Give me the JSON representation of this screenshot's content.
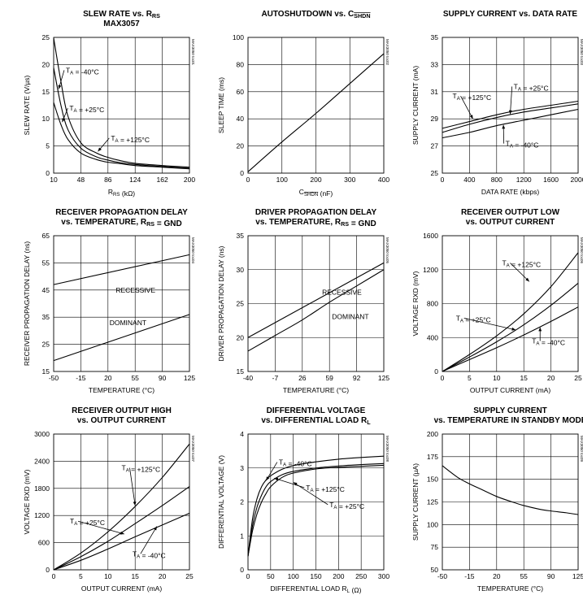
{
  "chart_data": [
    {
      "id": "p1",
      "type": "line",
      "title": [
        "SLEW RATE vs. R_RS",
        "MAX3057"
      ],
      "xlabel": "R_RS (kΩ)",
      "ylabel": "SLEW RATE (V/µs)",
      "xlim": [
        10,
        200
      ],
      "ylim": [
        0,
        25
      ],
      "xticks": [
        10,
        48,
        86,
        124,
        162,
        200
      ],
      "yticks": [
        0,
        5,
        10,
        15,
        20,
        25
      ],
      "grid": true,
      "code": "MAX3050 toc01",
      "series": [
        {
          "name": "T_A = -40°C",
          "x": [
            10,
            20,
            30,
            48,
            70,
            86,
            100,
            124,
            162,
            200
          ],
          "y": [
            24.9,
            17.0,
            10.5,
            5.6,
            3.7,
            2.9,
            2.4,
            1.8,
            1.4,
            1.1
          ]
        },
        {
          "name": "T_A = +25°C",
          "x": [
            10,
            20,
            30,
            48,
            70,
            86,
            100,
            124,
            162,
            200
          ],
          "y": [
            19.4,
            12.6,
            8.0,
            4.6,
            3.0,
            2.4,
            2.0,
            1.6,
            1.2,
            0.9
          ]
        },
        {
          "name": "T_A = +125°C",
          "x": [
            10,
            20,
            30,
            48,
            70,
            86,
            100,
            124,
            162,
            200
          ],
          "y": [
            13.0,
            9.0,
            6.2,
            3.7,
            2.5,
            2.0,
            1.8,
            1.4,
            1.1,
            0.8
          ]
        }
      ],
      "annotations": [
        {
          "label": "T_A = -40°C",
          "at": [
            27,
            18.5
          ],
          "arrow_to": [
            17,
            15.5
          ]
        },
        {
          "label": "T_A = +25°C",
          "at": [
            32,
            11.5
          ],
          "arrow_to": [
            22,
            9.4
          ]
        },
        {
          "label": "T_A = +125°C",
          "at": [
            90,
            6.0
          ],
          "arrow_to": [
            72,
            4.0
          ]
        }
      ]
    },
    {
      "id": "p2",
      "type": "line",
      "title": [
        "AUTOSHUTDOWN vs. C_SHDN"
      ],
      "xlabel": "C_SHDN (nF)",
      "ylabel": "SLEEP TIME (ms)",
      "xlim": [
        0,
        400
      ],
      "ylim": [
        0,
        100
      ],
      "xticks": [
        0,
        100,
        200,
        300,
        400
      ],
      "yticks": [
        0,
        20,
        40,
        60,
        80,
        100
      ],
      "grid": true,
      "code": "MAX3050 toc02",
      "series": [
        {
          "name": "",
          "x": [
            0,
            100,
            200,
            300,
            400
          ],
          "y": [
            1,
            23,
            44,
            66,
            88
          ]
        }
      ],
      "annotations": []
    },
    {
      "id": "p3",
      "type": "line",
      "title": [
        "SUPPLY CURRENT vs. DATA RATE"
      ],
      "xlabel": "DATA RATE (kbps)",
      "ylabel": "SUPPLY CURRENT (mA)",
      "xlim": [
        0,
        2000
      ],
      "ylim": [
        25,
        35
      ],
      "xticks": [
        0,
        400,
        800,
        1200,
        1600,
        2000
      ],
      "yticks": [
        25,
        27,
        29,
        31,
        33,
        35
      ],
      "grid": true,
      "code": "MAX3050 toc03",
      "series": [
        {
          "name": "T_A = +125°C",
          "x": [
            0,
            400,
            800,
            1200,
            1600,
            2000
          ],
          "y": [
            28.3,
            28.8,
            29.3,
            29.7,
            30.0,
            30.3
          ]
        },
        {
          "name": "T_A = +25°C",
          "x": [
            0,
            400,
            800,
            1200,
            1600,
            2000
          ],
          "y": [
            28.0,
            28.6,
            29.1,
            29.5,
            29.8,
            30.1
          ]
        },
        {
          "name": "T_A = -40°C",
          "x": [
            0,
            400,
            800,
            1200,
            1600,
            2000
          ],
          "y": [
            27.6,
            28.0,
            28.5,
            28.9,
            29.3,
            29.7
          ]
        }
      ],
      "annotations": [
        {
          "label": "T_A = +125°C",
          "at": [
            150,
            30.5
          ],
          "arrow_to": [
            450,
            29.0
          ]
        },
        {
          "label": "T_A = +25°C",
          "at": [
            1050,
            31.2
          ],
          "arrow_to": [
            1000,
            29.35
          ]
        },
        {
          "label": "T_A = -40°C",
          "at": [
            930,
            27.0
          ],
          "arrow_to": [
            900,
            28.55
          ]
        }
      ]
    },
    {
      "id": "p4",
      "type": "line",
      "title": [
        "RECEIVER PROPAGATION DELAY",
        "vs. TEMPERATURE, R_RS = GND"
      ],
      "xlabel": "TEMPERATURE (°C)",
      "ylabel": "RECEIVER PROPAGATION DELAY (ns)",
      "xlim": [
        -50,
        125
      ],
      "ylim": [
        15,
        65
      ],
      "xticks": [
        -50,
        -15,
        20,
        55,
        90,
        125
      ],
      "yticks": [
        15,
        25,
        35,
        45,
        55,
        65
      ],
      "grid": true,
      "code": "MAX3050 toc04",
      "series": [
        {
          "name": "RECESSIVE",
          "x": [
            -50,
            125
          ],
          "y": [
            47,
            58
          ]
        },
        {
          "name": "DOMINANT",
          "x": [
            -50,
            125
          ],
          "y": [
            19,
            36
          ]
        }
      ],
      "annotations": [
        {
          "label": "RECESSIVE",
          "at": [
            30,
            44
          ],
          "arrow_to": null
        },
        {
          "label": "DOMINANT",
          "at": [
            22,
            32
          ],
          "arrow_to": null
        }
      ]
    },
    {
      "id": "p5",
      "type": "line",
      "title": [
        "DRIVER PROPAGATION DELAY",
        "vs. TEMPERATURE, R_RS = GND"
      ],
      "xlabel": "TEMPERATURE (°C)",
      "ylabel": "DRIVER PROPAGATION DELAY (ns)",
      "xlim": [
        -40,
        125
      ],
      "ylim": [
        15,
        35
      ],
      "xticks": [
        -40,
        -7,
        26,
        59,
        92,
        125
      ],
      "yticks": [
        15,
        20,
        25,
        30,
        35
      ],
      "grid": true,
      "code": "MAX3050 toc05",
      "series": [
        {
          "name": "RECESSIVE",
          "x": [
            -40,
            125
          ],
          "y": [
            20,
            31
          ]
        },
        {
          "name": "DOMINANT",
          "x": [
            -40,
            -7,
            26,
            59,
            92,
            125
          ],
          "y": [
            18,
            20.3,
            22.6,
            25.2,
            27.6,
            30
          ]
        }
      ],
      "annotations": [
        {
          "label": "RECESSIVE",
          "at": [
            50,
            26.3
          ],
          "arrow_to": null
        },
        {
          "label": "DOMINANT",
          "at": [
            62,
            22.7
          ],
          "arrow_to": null
        }
      ]
    },
    {
      "id": "p6",
      "type": "line",
      "title": [
        "RECEIVER OUTPUT LOW",
        "vs. OUTPUT CURRENT"
      ],
      "xlabel": "OUTPUT CURRENT (mA)",
      "ylabel": "VOLTAGE RXD (mV)",
      "xlim": [
        0,
        25
      ],
      "ylim": [
        0,
        1600
      ],
      "xticks": [
        0,
        5,
        10,
        15,
        20,
        25
      ],
      "yticks": [
        0,
        400,
        800,
        1200,
        1600
      ],
      "grid": true,
      "code": "MAX3050 toc06",
      "series": [
        {
          "name": "T_A = +125°C",
          "x": [
            0,
            5,
            10,
            15,
            20,
            25
          ],
          "y": [
            0,
            200,
            420,
            680,
            1000,
            1400
          ]
        },
        {
          "name": "T_A = +25°C",
          "x": [
            0,
            5,
            10,
            15,
            20,
            25
          ],
          "y": [
            0,
            170,
            350,
            550,
            780,
            1040
          ]
        },
        {
          "name": "T_A = -40°C",
          "x": [
            0,
            5,
            10,
            15,
            20,
            25
          ],
          "y": [
            0,
            140,
            280,
            430,
            590,
            760
          ]
        }
      ],
      "annotations": [
        {
          "label": "T_A = +125°C",
          "at": [
            11,
            1250
          ],
          "arrow_to": [
            16,
            1060
          ]
        },
        {
          "label": "T_A = +25°C",
          "at": [
            2.5,
            600
          ],
          "arrow_to": [
            13.5,
            490
          ]
        },
        {
          "label": "T_A = -40°C",
          "at": [
            16.5,
            330
          ],
          "arrow_to": [
            18,
            520
          ]
        }
      ]
    },
    {
      "id": "p7",
      "type": "line",
      "title": [
        "RECEIVER OUTPUT HIGH",
        "vs. OUTPUT CURRENT"
      ],
      "xlabel": "OUTPUT CURRENT (mA)",
      "ylabel": "VOLTAGE RXD (mV)",
      "xlim": [
        0,
        25
      ],
      "ylim": [
        0,
        3000
      ],
      "xticks": [
        0,
        5,
        10,
        15,
        20,
        25
      ],
      "yticks": [
        0,
        600,
        1200,
        1800,
        2400,
        3000
      ],
      "grid": true,
      "code": "MAX3050 toc07",
      "series": [
        {
          "name": "T_A = +125°C",
          "x": [
            0,
            5,
            10,
            15,
            20,
            25
          ],
          "y": [
            0,
            370,
            840,
            1400,
            2040,
            2780
          ]
        },
        {
          "name": "T_A = +25°C",
          "x": [
            0,
            5,
            10,
            15,
            20,
            25
          ],
          "y": [
            0,
            290,
            630,
            1020,
            1420,
            1840
          ]
        },
        {
          "name": "T_A = -40°C",
          "x": [
            0,
            5,
            10,
            15,
            20,
            25
          ],
          "y": [
            0,
            210,
            460,
            730,
            990,
            1250
          ]
        }
      ],
      "annotations": [
        {
          "label": "T_A = +125°C",
          "at": [
            12.5,
            2200
          ],
          "arrow_to": [
            15,
            1420
          ]
        },
        {
          "label": "T_A = +25°C",
          "at": [
            3,
            1020
          ],
          "arrow_to": [
            13,
            790
          ]
        },
        {
          "label": "T_A = -40°C",
          "at": [
            14.5,
            300
          ],
          "arrow_to": [
            19,
            960
          ]
        }
      ]
    },
    {
      "id": "p8",
      "type": "line",
      "title": [
        "DIFFERENTIAL VOLTAGE",
        "vs. DIFFERENTIAL LOAD R_L"
      ],
      "xlabel": "DIFFERENTIAL LOAD R_L (Ω)",
      "ylabel": "DIFFERENTIAL VOLTAGE (V)",
      "xlim": [
        0,
        300
      ],
      "ylim": [
        0,
        4
      ],
      "xticks": [
        0,
        50,
        100,
        150,
        200,
        250,
        300
      ],
      "yticks": [
        0,
        1,
        2,
        3,
        4
      ],
      "grid": true,
      "code": "MAX3050 toc08",
      "series": [
        {
          "name": "T_A = -40°C",
          "x": [
            0,
            10,
            20,
            30,
            40,
            50,
            75,
            100,
            150,
            200,
            250,
            300
          ],
          "y": [
            0.4,
            1.5,
            2.1,
            2.45,
            2.65,
            2.77,
            2.96,
            3.07,
            3.18,
            3.26,
            3.31,
            3.35
          ]
        },
        {
          "name": "T_A = +125°C",
          "x": [
            0,
            10,
            20,
            30,
            40,
            50,
            75,
            100,
            150,
            200,
            250,
            300
          ],
          "y": [
            0.4,
            1.3,
            1.85,
            2.2,
            2.45,
            2.6,
            2.8,
            2.9,
            3.0,
            3.06,
            3.1,
            3.13
          ]
        },
        {
          "name": "T_A = +25°C",
          "x": [
            0,
            10,
            20,
            30,
            40,
            50,
            75,
            100,
            150,
            200,
            250,
            300
          ],
          "y": [
            0.4,
            1.15,
            1.65,
            2.0,
            2.25,
            2.45,
            2.72,
            2.85,
            2.97,
            3.02,
            3.05,
            3.08
          ]
        }
      ],
      "annotations": [
        {
          "label": "T_A = -40°C",
          "at": [
            68,
            3.1
          ],
          "arrow_to": [
            40,
            2.63
          ]
        },
        {
          "label": "T_A = +125°C",
          "at": [
            128,
            2.35
          ],
          "arrow_to": [
            58,
            2.7
          ]
        },
        {
          "label": "T_A = +25°C",
          "at": [
            180,
            1.85
          ],
          "arrow_to": [
            100,
            2.58
          ]
        }
      ]
    },
    {
      "id": "p9",
      "type": "line",
      "title": [
        "SUPPLY CURRENT",
        "vs. TEMPERATURE IN STANDBY MODE"
      ],
      "xlabel": "TEMPERATURE (°C)",
      "ylabel": "SUPPLY CURRENT (µA)",
      "xlim": [
        -50,
        125
      ],
      "ylim": [
        50,
        200
      ],
      "xticks": [
        -50,
        -15,
        20,
        55,
        90,
        125
      ],
      "yticks": [
        50,
        75,
        100,
        125,
        150,
        175,
        200
      ],
      "grid": true,
      "code": "MAX3050 toc09",
      "series": [
        {
          "name": "",
          "x": [
            -50,
            -30,
            -15,
            0,
            20,
            40,
            55,
            75,
            90,
            110,
            125
          ],
          "y": [
            165,
            152,
            145,
            139,
            131,
            125,
            121,
            117,
            115,
            113,
            111
          ]
        }
      ],
      "annotations": []
    }
  ]
}
